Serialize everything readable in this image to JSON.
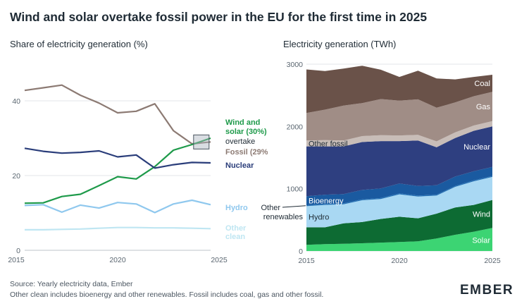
{
  "title": "Wind and solar overtake fossil power in the EU for the first time in 2025",
  "footer": {
    "source": "Source: Yearly electricity data, Ember",
    "note": "Other clean includes bioenergy and other renewables. Fossil includes coal, gas and other fossil."
  },
  "logo": "EMBER",
  "chart_data": [
    {
      "type": "line",
      "title": "Share of electricity generation (%)",
      "x": [
        2015,
        2016,
        2017,
        2018,
        2019,
        2020,
        2021,
        2022,
        2023,
        2024,
        2025
      ],
      "xticks": [
        2015,
        2020,
        2025
      ],
      "yticks": [
        0,
        20,
        40
      ],
      "xlim": [
        2015,
        2025
      ],
      "ylim": [
        0,
        50
      ],
      "grid": true,
      "series": [
        {
          "key": "fossil",
          "name": "Fossil (29%)",
          "color": "#8c7a73",
          "values": [
            42.8,
            43.5,
            44.2,
            41.5,
            39.4,
            36.8,
            37.2,
            39.2,
            32.0,
            28.5,
            29.0
          ]
        },
        {
          "key": "wind_solar",
          "name": "Wind and solar (30%)",
          "color": "#1e9a4a",
          "values": [
            12.6,
            12.7,
            14.4,
            15.0,
            17.3,
            19.7,
            19.1,
            22.4,
            26.8,
            28.3,
            30.0
          ]
        },
        {
          "key": "nuclear",
          "name": "Nuclear",
          "color": "#2a3d7a",
          "values": [
            27.3,
            26.5,
            26.0,
            26.2,
            26.6,
            25.0,
            25.5,
            22.0,
            22.9,
            23.5,
            23.4
          ]
        },
        {
          "key": "hydro",
          "name": "Hydro",
          "color": "#8fc8ee",
          "values": [
            12.0,
            12.2,
            10.2,
            12.1,
            11.3,
            12.8,
            12.4,
            10.1,
            12.4,
            13.4,
            12.2
          ]
        },
        {
          "key": "other_clean",
          "name": "Other clean",
          "color": "#bfe6f2",
          "values": [
            5.5,
            5.5,
            5.6,
            5.7,
            5.9,
            6.1,
            6.1,
            6.0,
            6.0,
            5.9,
            5.8
          ]
        }
      ],
      "annotation": "overtake"
    },
    {
      "type": "area",
      "title": "Electricity generation (TWh)",
      "x": [
        2015,
        2016,
        2017,
        2018,
        2019,
        2020,
        2021,
        2022,
        2023,
        2024,
        2025
      ],
      "xticks": [
        2015,
        2020,
        2025
      ],
      "yticks": [
        0,
        1000,
        2000,
        3000
      ],
      "xlim": [
        2015,
        2025
      ],
      "ylim": [
        0,
        3000
      ],
      "stacked": true,
      "series": [
        {
          "key": "solar",
          "name": "Solar",
          "color": "#3cd473",
          "values": [
            100,
            110,
            115,
            125,
            135,
            145,
            155,
            200,
            260,
            310,
            370
          ]
        },
        {
          "key": "wind",
          "name": "Wind",
          "color": "#0d6b33",
          "values": [
            280,
            270,
            330,
            340,
            380,
            405,
            370,
            400,
            440,
            430,
            450
          ]
        },
        {
          "key": "hydro",
          "name": "Hydro",
          "color": "#a9d8f3",
          "values": [
            340,
            360,
            305,
            350,
            320,
            360,
            350,
            290,
            330,
            380,
            370
          ]
        },
        {
          "key": "other_renewables",
          "name": "Other renewables",
          "color": "#2270b5",
          "values": [
            15,
            15,
            15,
            15,
            15,
            15,
            15,
            15,
            15,
            15,
            15
          ]
        },
        {
          "key": "bioenergy",
          "name": "Bioenergy",
          "color": "#1a5aa0",
          "values": [
            145,
            150,
            150,
            150,
            155,
            160,
            155,
            150,
            150,
            145,
            145
          ]
        },
        {
          "key": "nuclear",
          "name": "Nuclear",
          "color": "#2e3f80",
          "values": [
            800,
            775,
            765,
            770,
            760,
            680,
            730,
            610,
            620,
            650,
            650
          ]
        },
        {
          "key": "other_fossil",
          "name": "Other fossil",
          "color": "#c8bdb8",
          "values": [
            95,
            100,
            95,
            95,
            95,
            90,
            90,
            95,
            90,
            85,
            85
          ]
        },
        {
          "key": "gas",
          "name": "Gas",
          "color": "#a08d86",
          "values": [
            440,
            490,
            560,
            530,
            580,
            560,
            570,
            540,
            480,
            470,
            470
          ]
        },
        {
          "key": "coal",
          "name": "Coal",
          "color": "#6a5249",
          "values": [
            700,
            620,
            595,
            600,
            470,
            380,
            460,
            470,
            370,
            310,
            275
          ]
        }
      ]
    }
  ]
}
